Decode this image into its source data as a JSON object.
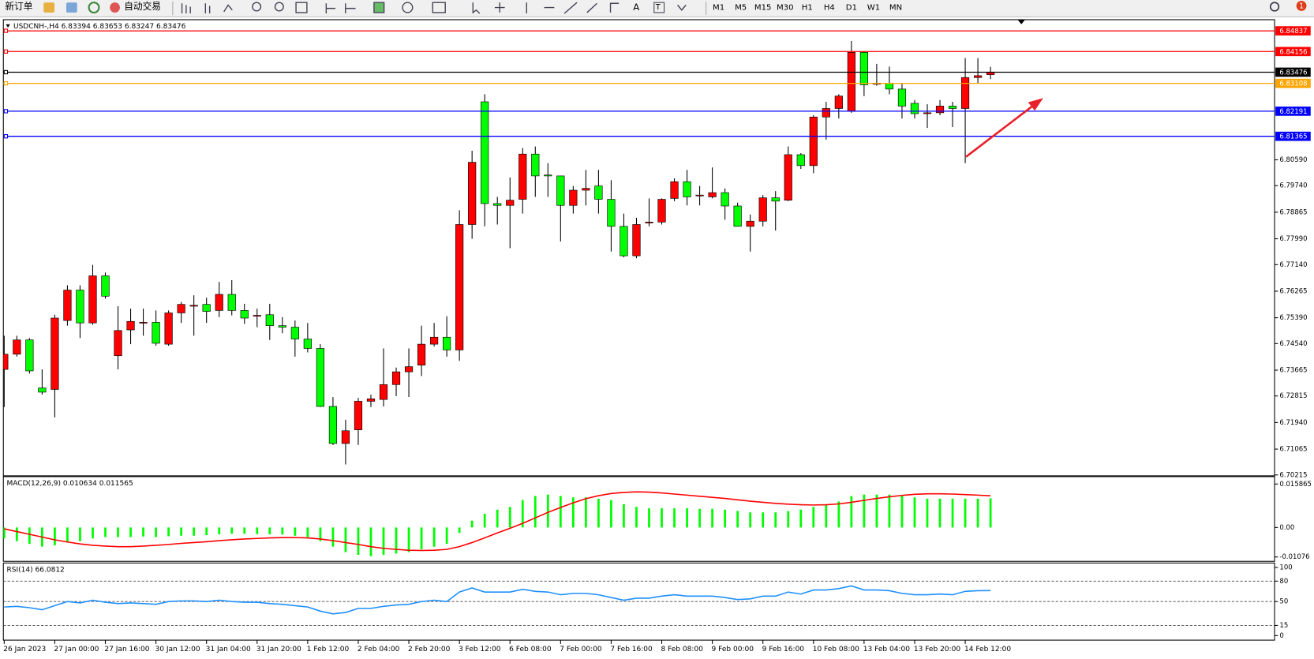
{
  "toolbar": {
    "new_order": "新订单",
    "auto_trading": "自动交易",
    "text_tool": "A",
    "label_tool": "T",
    "timeframes": [
      "M1",
      "M5",
      "M15",
      "M30",
      "H1",
      "H4",
      "D1",
      "W1",
      "MN"
    ],
    "notifications": "1"
  },
  "chart_data": [
    {
      "type": "candlestick",
      "title": "USDCNH-,H4  6.83394 6.83653 6.83247 6.83476",
      "categories": [
        "26 Jan 2023",
        null,
        null,
        null,
        "27 Jan 00:00",
        null,
        null,
        null,
        "27 Jan 16:00",
        null,
        null,
        null,
        "30 Jan 12:00",
        null,
        null,
        null,
        "31 Jan 04:00",
        null,
        null,
        null,
        "31 Jan 20:00",
        null,
        null,
        null,
        "1 Feb 12:00",
        null,
        null,
        null,
        "2 Feb 04:00",
        null,
        null,
        null,
        "2 Feb 20:00",
        null,
        null,
        null,
        "3 Feb 12:00",
        null,
        null,
        null,
        "6 Feb 08:00",
        null,
        null,
        null,
        "7 Feb 00:00",
        null,
        null,
        null,
        "7 Feb 16:00",
        null,
        null,
        null,
        "8 Feb 08:00",
        null,
        null,
        null,
        "9 Feb 00:00",
        null,
        null,
        null,
        "9 Feb 16:00",
        null,
        null,
        null,
        "10 Feb 08:00",
        null,
        null,
        null,
        "13 Feb 04:00",
        null,
        null,
        null,
        "13 Feb 20:00",
        null,
        null,
        null,
        "14 Feb 12:00",
        null,
        null
      ],
      "open": [
        6.7369,
        6.7419,
        6.7466,
        6.7308,
        6.7303,
        6.753,
        6.763,
        6.7522,
        6.7677,
        6.7414,
        6.7499,
        6.7522,
        6.7524,
        6.7452,
        6.7555,
        6.7577,
        6.7583,
        6.7563,
        6.7616,
        6.7563,
        6.7544,
        6.7549,
        6.7513,
        6.7508,
        6.7469,
        6.7438,
        6.7247,
        6.7125,
        6.717,
        6.7264,
        6.727,
        6.7319,
        6.7361,
        6.7383,
        6.7452,
        6.7475,
        6.7433,
        6.7846,
        6.825,
        6.7915,
        6.7909,
        6.7929,
        6.8078,
        6.8009,
        6.8006,
        6.7909,
        6.7959,
        6.7973,
        6.7929,
        6.784,
        6.7743,
        6.7851,
        6.7854,
        6.7932,
        6.7987,
        6.794,
        6.7937,
        6.7951,
        6.7907,
        6.784,
        6.7857,
        6.7934,
        6.7926,
        6.8076,
        6.804,
        6.82,
        6.8228,
        6.822,
        6.8413,
        6.8308,
        6.8311,
        6.8292,
        6.8245,
        6.8211,
        6.8214,
        6.8236,
        6.8228,
        6.833,
        6.83394
      ],
      "high": [
        6.748,
        6.748,
        6.7472,
        6.7369,
        6.7549,
        6.7646,
        6.7646,
        6.7713,
        6.7688,
        6.7577,
        6.7569,
        6.7569,
        6.7563,
        6.7563,
        6.7591,
        6.7613,
        6.7605,
        6.7657,
        6.7663,
        6.7585,
        6.7569,
        6.7585,
        6.7541,
        6.753,
        6.7522,
        6.7452,
        6.7278,
        6.7203,
        6.7275,
        6.7286,
        6.7438,
        6.7375,
        6.7438,
        6.7513,
        6.7522,
        6.7544,
        6.7893,
        6.8089,
        6.8275,
        6.7937,
        6.8001,
        6.8098,
        6.8103,
        6.8048,
        6.8006,
        6.7973,
        6.8026,
        6.8026,
        6.7992,
        6.7882,
        6.7868,
        6.7932,
        6.7932,
        6.7998,
        6.8026,
        6.7973,
        6.8034,
        6.7965,
        6.7918,
        6.7879,
        6.7943,
        6.7956,
        6.8103,
        6.8081,
        6.8206,
        6.825,
        6.8275,
        6.845,
        6.8416,
        6.8375,
        6.8366,
        6.8311,
        6.8256,
        6.8242,
        6.8256,
        6.825,
        6.8394,
        6.8394,
        6.83653
      ],
      "low": [
        6.7245,
        6.7411,
        6.7355,
        6.7286,
        6.7211,
        6.7513,
        6.7472,
        6.7516,
        6.7602,
        6.7369,
        6.7452,
        6.748,
        6.7447,
        6.7447,
        6.7522,
        6.748,
        6.7522,
        6.7541,
        6.7547,
        6.7519,
        6.7508,
        6.7466,
        6.7488,
        6.7411,
        6.7425,
        6.7245,
        6.712,
        6.7056,
        6.712,
        6.7245,
        6.7247,
        6.7281,
        6.7278,
        6.7347,
        6.7444,
        6.7411,
        6.7397,
        6.7799,
        6.784,
        6.7846,
        6.7768,
        6.7882,
        6.7937,
        6.7937,
        6.779,
        6.7882,
        6.7909,
        6.7882,
        6.7757,
        6.7738,
        6.7735,
        6.784,
        6.7846,
        6.7923,
        6.7909,
        6.7909,
        6.7932,
        6.7862,
        6.784,
        6.7757,
        6.784,
        6.7826,
        6.7923,
        6.8029,
        6.8015,
        6.8125,
        6.8195,
        6.8214,
        6.8269,
        6.8303,
        6.8275,
        6.8195,
        6.8195,
        6.8164,
        6.8206,
        6.8167,
        6.8048,
        6.8311,
        6.83247
      ],
      "close": [
        6.7419,
        6.7466,
        6.7364,
        6.7294,
        6.7538,
        6.763,
        6.7522,
        6.7677,
        6.761,
        6.7497,
        6.7527,
        6.7524,
        6.7455,
        6.7555,
        6.7583,
        6.758,
        6.756,
        6.7616,
        6.7563,
        6.7538,
        6.7547,
        6.7513,
        6.7508,
        6.7469,
        6.7438,
        6.7247,
        6.7125,
        6.7167,
        6.7264,
        6.7272,
        6.7319,
        6.7361,
        6.7378,
        6.7452,
        6.7475,
        6.7433,
        6.7846,
        6.8051,
        6.7915,
        6.7909,
        6.7926,
        6.8078,
        6.8006,
        6.8006,
        6.7909,
        6.7959,
        6.7965,
        6.7929,
        6.784,
        6.7743,
        6.7846,
        6.7854,
        6.7929,
        6.7987,
        6.7937,
        6.7943,
        6.7951,
        6.7907,
        6.784,
        6.7857,
        6.7934,
        6.7923,
        6.8076,
        6.804,
        6.82,
        6.8228,
        6.8269,
        6.8413,
        6.8306,
        6.8311,
        6.8292,
        6.8236,
        6.8211,
        6.8214,
        6.8236,
        6.8228,
        6.833,
        6.8336,
        6.83476
      ],
      "up_color": "#ff0000",
      "down_color": "#00ff00",
      "ylim": [
        6.702,
        6.8519
      ],
      "yticks": [
        {
          "value": 6.8059,
          "label": "6.80590"
        },
        {
          "value": 6.7974,
          "label": "6.79740"
        },
        {
          "value": 6.78865,
          "label": "6.78865"
        },
        {
          "value": 6.7799,
          "label": "6.77990"
        },
        {
          "value": 6.7714,
          "label": "6.77140"
        },
        {
          "value": 6.76265,
          "label": "6.76265"
        },
        {
          "value": 6.7539,
          "label": "6.75390"
        },
        {
          "value": 6.7454,
          "label": "6.74540"
        },
        {
          "value": 6.73665,
          "label": "6.73665"
        },
        {
          "value": 6.72815,
          "label": "6.72815"
        },
        {
          "value": 6.7194,
          "label": "6.71940"
        },
        {
          "value": 6.71065,
          "label": "6.71065"
        },
        {
          "value": 6.70215,
          "label": "6.70215"
        }
      ],
      "hlines": [
        {
          "value": 6.84837,
          "color": "#ff0000"
        },
        {
          "value": 6.84156,
          "color": "#ff0000"
        },
        {
          "value": 6.83476,
          "color": "#000000"
        },
        {
          "value": 6.83108,
          "color": "#ffa500"
        },
        {
          "value": 6.82191,
          "color": "#0000ff"
        },
        {
          "value": 6.81365,
          "color": "#0000ff"
        }
      ]
    },
    {
      "type": "macd",
      "title": "MACD(12,26,9) 0.010634 0.011565",
      "series": [
        {
          "style": "histogram",
          "color": "#00ff00",
          "values": [
            -0.004,
            -0.005,
            -0.006,
            -0.007,
            -0.0065,
            -0.0055,
            -0.005,
            -0.004,
            -0.0035,
            -0.0035,
            -0.0035,
            -0.0033,
            -0.0035,
            -0.0032,
            -0.003,
            -0.003,
            -0.0028,
            -0.0025,
            -0.0023,
            -0.0023,
            -0.0024,
            -0.0025,
            -0.0026,
            -0.003,
            -0.0035,
            -0.005,
            -0.007,
            -0.009,
            -0.01,
            -0.0105,
            -0.01,
            -0.0095,
            -0.009,
            -0.008,
            -0.007,
            -0.006,
            -0.002,
            0.0025,
            0.005,
            0.0065,
            0.0075,
            0.01,
            0.0115,
            0.012,
            0.0115,
            0.011,
            0.011,
            0.0105,
            0.01,
            0.0085,
            0.0075,
            0.007,
            0.007,
            0.007,
            0.007,
            0.0068,
            0.0068,
            0.0065,
            0.006,
            0.0055,
            0.0055,
            0.0055,
            0.006,
            0.0065,
            0.0075,
            0.0085,
            0.0095,
            0.0115,
            0.012,
            0.012,
            0.012,
            0.0115,
            0.011,
            0.0105,
            0.0105,
            0.0105,
            0.0105,
            0.0105,
            0.010634
          ]
        },
        {
          "style": "line",
          "color": "#ff0000",
          "values": [
            -0.0005,
            -0.0015,
            -0.0025,
            -0.0035,
            -0.0045,
            -0.0053,
            -0.006,
            -0.0065,
            -0.0068,
            -0.007,
            -0.007,
            -0.0068,
            -0.0065,
            -0.0062,
            -0.0058,
            -0.0055,
            -0.0052,
            -0.0048,
            -0.0045,
            -0.0042,
            -0.004,
            -0.0038,
            -0.0037,
            -0.0037,
            -0.0038,
            -0.0042,
            -0.0048,
            -0.0055,
            -0.0062,
            -0.007,
            -0.0076,
            -0.008,
            -0.0083,
            -0.0084,
            -0.0083,
            -0.008,
            -0.007,
            -0.0055,
            -0.0038,
            -0.002,
            -0.0003,
            0.0015,
            0.0035,
            0.0055,
            0.0073,
            0.009,
            0.0105,
            0.0116,
            0.0124,
            0.0128,
            0.013,
            0.0129,
            0.0126,
            0.0122,
            0.0118,
            0.0114,
            0.011,
            0.0106,
            0.0101,
            0.0096,
            0.0092,
            0.0088,
            0.0085,
            0.0083,
            0.0082,
            0.0083,
            0.0086,
            0.0092,
            0.0099,
            0.0106,
            0.0112,
            0.0117,
            0.0121,
            0.0123,
            0.0123,
            0.0122,
            0.012,
            0.0118,
            0.011565
          ]
        }
      ],
      "ylim": [
        -0.0122,
        0.0184
      ],
      "yticks": [
        {
          "value": 0.015865,
          "label": "0.015865"
        },
        {
          "value": 0,
          "label": "0.00"
        },
        {
          "value": -0.01076,
          "label": "-0.01076"
        }
      ]
    },
    {
      "type": "line",
      "title": "RSI(14) 66.0812",
      "series": [
        {
          "style": "line",
          "color": "#1e90ff",
          "values": [
            42,
            43,
            41,
            38,
            44,
            50,
            48,
            52,
            49,
            47,
            48,
            47,
            46,
            50,
            51,
            51,
            50,
            52,
            50,
            49,
            49,
            47,
            46,
            44,
            42,
            36,
            32,
            34,
            40,
            40,
            43,
            45,
            46,
            50,
            52,
            50,
            64,
            70,
            64,
            64,
            64,
            68,
            65,
            64,
            60,
            62,
            62,
            60,
            56,
            52,
            55,
            55,
            58,
            60,
            58,
            58,
            58,
            56,
            53,
            54,
            58,
            58,
            64,
            61,
            67,
            67,
            69,
            73,
            67,
            67,
            66,
            62,
            60,
            60,
            61,
            60,
            65,
            66,
            66.0812
          ]
        }
      ],
      "ylim": [
        -6,
        106
      ],
      "yticks": [
        100,
        80,
        50,
        15,
        0
      ],
      "levels": [
        80,
        50,
        15
      ]
    }
  ]
}
